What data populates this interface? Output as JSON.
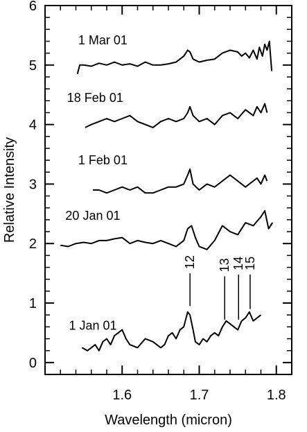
{
  "chart_data": {
    "type": "line",
    "title": "",
    "xlabel": "Wavelength (micron)",
    "ylabel": "Relative Intensity",
    "xlim": [
      1.5,
      1.82
    ],
    "ylim": [
      -0.2,
      6
    ],
    "x_ticks": [
      1.6,
      1.7,
      1.8
    ],
    "x_tick_labels": [
      "1.6",
      "1.7",
      "1.8"
    ],
    "y_ticks": [
      0,
      1,
      2,
      3,
      4,
      5,
      6
    ],
    "y_tick_labels": [
      "0",
      "1",
      "2",
      "3",
      "4",
      "5",
      "6"
    ],
    "grid": false,
    "line_color": "#000000",
    "series": [
      {
        "name": "1 Mar 01",
        "label_at": [
          1.575,
          5.35
        ],
        "x": [
          1.542,
          1.545,
          1.55,
          1.56,
          1.57,
          1.58,
          1.59,
          1.6,
          1.61,
          1.62,
          1.63,
          1.64,
          1.65,
          1.66,
          1.67,
          1.675,
          1.68,
          1.685,
          1.688,
          1.692,
          1.7,
          1.71,
          1.72,
          1.73,
          1.74,
          1.75,
          1.755,
          1.76,
          1.765,
          1.77,
          1.775,
          1.778,
          1.782,
          1.785,
          1.788,
          1.791,
          1.794
        ],
        "y": [
          4.85,
          5.0,
          5.0,
          4.98,
          5.03,
          5.0,
          5.05,
          5.0,
          5.02,
          4.98,
          5.05,
          5.0,
          5.0,
          5.02,
          5.05,
          5.1,
          5.15,
          5.25,
          5.22,
          5.1,
          5.05,
          5.08,
          5.1,
          5.2,
          5.25,
          5.22,
          5.15,
          5.2,
          5.12,
          5.25,
          5.1,
          5.3,
          5.15,
          5.35,
          5.25,
          5.4,
          4.9
        ]
      },
      {
        "name": "18 Feb 01",
        "label_at": [
          1.565,
          4.38
        ],
        "x": [
          1.552,
          1.56,
          1.57,
          1.58,
          1.59,
          1.6,
          1.61,
          1.62,
          1.63,
          1.64,
          1.65,
          1.66,
          1.67,
          1.68,
          1.685,
          1.688,
          1.692,
          1.7,
          1.71,
          1.72,
          1.73,
          1.74,
          1.75,
          1.76,
          1.77,
          1.775,
          1.78,
          1.785,
          1.788
        ],
        "y": [
          3.95,
          4.0,
          4.05,
          4.1,
          4.05,
          4.1,
          4.15,
          4.05,
          4.0,
          3.95,
          4.05,
          4.1,
          4.05,
          4.1,
          4.2,
          4.3,
          4.15,
          4.05,
          4.1,
          4.0,
          4.15,
          4.2,
          4.1,
          4.25,
          4.15,
          4.3,
          4.2,
          4.35,
          4.2
        ]
      },
      {
        "name": "1 Feb 01",
        "label_at": [
          1.575,
          3.33
        ],
        "x": [
          1.562,
          1.57,
          1.58,
          1.59,
          1.6,
          1.61,
          1.62,
          1.63,
          1.64,
          1.65,
          1.66,
          1.67,
          1.68,
          1.685,
          1.688,
          1.692,
          1.7,
          1.71,
          1.72,
          1.73,
          1.74,
          1.75,
          1.76,
          1.77,
          1.775,
          1.78,
          1.785,
          1.788
        ],
        "y": [
          2.9,
          2.9,
          2.85,
          2.9,
          2.95,
          2.9,
          2.95,
          2.85,
          2.85,
          2.9,
          2.95,
          2.95,
          3.0,
          3.15,
          3.25,
          3.0,
          2.9,
          3.0,
          2.95,
          3.05,
          3.15,
          3.05,
          2.95,
          3.05,
          3.1,
          3.0,
          3.15,
          3.05
        ]
      },
      {
        "name": "20 Jan 01",
        "label_at": [
          1.562,
          2.4
        ],
        "x": [
          1.52,
          1.53,
          1.54,
          1.55,
          1.56,
          1.57,
          1.58,
          1.59,
          1.6,
          1.61,
          1.62,
          1.63,
          1.64,
          1.65,
          1.66,
          1.67,
          1.68,
          1.685,
          1.69,
          1.695,
          1.7,
          1.71,
          1.72,
          1.73,
          1.74,
          1.75,
          1.76,
          1.77,
          1.78,
          1.785,
          1.79,
          1.795
        ],
        "y": [
          1.97,
          1.95,
          2.0,
          2.02,
          2.0,
          2.05,
          2.05,
          2.08,
          2.1,
          2.0,
          2.05,
          2.02,
          2.0,
          2.05,
          2.0,
          1.95,
          2.05,
          2.25,
          2.3,
          2.1,
          1.95,
          1.9,
          2.05,
          2.3,
          2.2,
          2.15,
          2.35,
          2.3,
          2.45,
          2.55,
          2.25,
          2.35
        ]
      },
      {
        "name": "1 Jan 01",
        "label_at": [
          1.562,
          0.55
        ],
        "x": [
          1.548,
          1.555,
          1.56,
          1.565,
          1.57,
          1.575,
          1.58,
          1.585,
          1.59,
          1.595,
          1.6,
          1.605,
          1.61,
          1.62,
          1.63,
          1.64,
          1.65,
          1.655,
          1.66,
          1.665,
          1.67,
          1.675,
          1.68,
          1.685,
          1.688,
          1.692,
          1.695,
          1.7,
          1.705,
          1.71,
          1.715,
          1.72,
          1.725,
          1.73,
          1.735,
          1.74,
          1.745,
          1.75,
          1.755,
          1.76,
          1.765,
          1.77,
          1.775,
          1.78
        ],
        "y": [
          0.25,
          0.2,
          0.25,
          0.3,
          0.2,
          0.35,
          0.4,
          0.3,
          0.45,
          0.5,
          0.55,
          0.4,
          0.3,
          0.25,
          0.4,
          0.35,
          0.25,
          0.3,
          0.45,
          0.5,
          0.4,
          0.55,
          0.6,
          0.85,
          0.8,
          0.55,
          0.35,
          0.3,
          0.4,
          0.35,
          0.45,
          0.5,
          0.45,
          0.6,
          0.7,
          0.65,
          0.6,
          0.55,
          0.7,
          0.75,
          0.85,
          0.7,
          0.75,
          0.8
        ]
      }
    ],
    "annotations": [
      {
        "label": "12",
        "x": 1.688,
        "y_start": 0.95,
        "y_end": 1.5,
        "label_y": 1.57
      },
      {
        "label": "13",
        "x": 1.733,
        "y_start": 0.72,
        "y_end": 1.45,
        "label_y": 1.52
      },
      {
        "label": "14",
        "x": 1.751,
        "y_start": 0.72,
        "y_end": 1.48,
        "label_y": 1.55
      },
      {
        "label": "15",
        "x": 1.766,
        "y_start": 0.9,
        "y_end": 1.48,
        "label_y": 1.55
      }
    ]
  }
}
